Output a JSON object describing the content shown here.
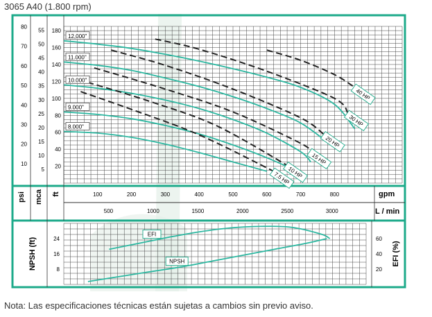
{
  "page": {
    "title": "3065 A40 (1.800 rpm)",
    "note": "Nota: Las especificaciones técnicas están sujetas a cambios sin previo aviso."
  },
  "colors": {
    "frame": "#1daa8a",
    "curve": "#2bb7a0",
    "dash": "#222222",
    "grid": "#444444",
    "band": "#e4efe8"
  },
  "chart_data": [
    {
      "type": "line",
      "title": "",
      "xlabel": "gpm",
      "xlabel_secondary": "L / min",
      "y_units": [
        "psi",
        "mca",
        "ft"
      ],
      "xlim": [
        0,
        1000
      ],
      "ylim": [
        0,
        185
      ],
      "x_ticks": [
        100,
        200,
        300,
        400,
        500,
        600,
        700,
        800
      ],
      "x_ticks_secondary": [
        500,
        1000,
        1500,
        2000,
        2500,
        3000
      ],
      "y_ticks_ft": [
        20,
        40,
        60,
        80,
        100,
        120,
        140,
        160,
        180
      ],
      "y_ticks_mca": [
        5,
        10,
        15,
        20,
        25,
        30,
        35,
        40,
        45,
        50,
        55
      ],
      "y_ticks_psi": [
        10,
        20,
        30,
        40,
        50,
        60,
        70,
        80
      ],
      "series": [
        {
          "name": "8.000\"",
          "x": [
            0,
            100,
            200,
            300,
            400,
            500,
            600
          ],
          "y": [
            61,
            59,
            54,
            46,
            36,
            25,
            14
          ]
        },
        {
          "name": "9.000\"",
          "x": [
            0,
            100,
            200,
            300,
            400,
            500,
            600,
            680
          ],
          "y": [
            84,
            81,
            76,
            68,
            58,
            45,
            30,
            16
          ]
        },
        {
          "name": "10.000\"",
          "x": [
            0,
            100,
            200,
            300,
            400,
            500,
            600,
            700,
            730
          ],
          "y": [
            116,
            112,
            106,
            98,
            88,
            75,
            59,
            37,
            25
          ]
        },
        {
          "name": "11.000\"",
          "x": [
            0,
            100,
            200,
            300,
            400,
            500,
            600,
            700,
            780
          ],
          "y": [
            143,
            139,
            133,
            124,
            114,
            102,
            88,
            71,
            48
          ]
        },
        {
          "name": "12,000\"",
          "x": [
            0,
            100,
            200,
            300,
            400,
            500,
            600,
            700,
            800,
            860
          ],
          "y": [
            168,
            164,
            159,
            152,
            144,
            135,
            125,
            113,
            93,
            64
          ]
        }
      ],
      "hp_lines": [
        {
          "name": "7.5 HP",
          "x": [
            50,
            200,
            400,
            620
          ],
          "y": [
            108,
            87,
            57,
            14
          ]
        },
        {
          "name": "10 HP",
          "x": [
            70,
            250,
            450,
            660
          ],
          "y": [
            119,
            97,
            68,
            21
          ]
        },
        {
          "name": "15 HP",
          "x": [
            90,
            300,
            500,
            700,
            730
          ],
          "y": [
            136,
            111,
            84,
            47,
            37
          ]
        },
        {
          "name": "20 HP",
          "x": [
            140,
            300,
            500,
            700,
            770
          ],
          "y": [
            157,
            139,
            111,
            77,
            57
          ]
        },
        {
          "name": "30 HP",
          "x": [
            270,
            400,
            600,
            800,
            840
          ],
          "y": [
            170,
            158,
            132,
            100,
            82
          ]
        },
        {
          "name": "40 HP",
          "x": [
            600,
            700,
            800,
            860
          ],
          "y": [
            157,
            145,
            128,
            113
          ]
        }
      ]
    },
    {
      "type": "line",
      "title": "",
      "ylabel_left": "NPSH (ft)",
      "ylabel_right": "EFI (%)",
      "xlim": [
        0,
        1000
      ],
      "y_ticks_left": [
        8,
        16,
        24
      ],
      "y_ticks_right": [
        20,
        40,
        60
      ],
      "ylim_left": [
        0,
        32
      ],
      "ylim_right": [
        0,
        80
      ],
      "series": [
        {
          "name": "EFI",
          "axis": "right",
          "x": [
            150,
            250,
            350,
            450,
            550,
            650,
            750,
            850,
            880
          ],
          "y": [
            46,
            54,
            62,
            69,
            74,
            76,
            75,
            66,
            60
          ]
        },
        {
          "name": "NPSH",
          "axis": "left",
          "x": [
            80,
            200,
            300,
            400,
            500,
            600,
            700,
            800,
            870
          ],
          "y": [
            1.5,
            4.5,
            7,
            9.5,
            12.5,
            15.5,
            18.5,
            21.5,
            24
          ]
        }
      ]
    }
  ]
}
